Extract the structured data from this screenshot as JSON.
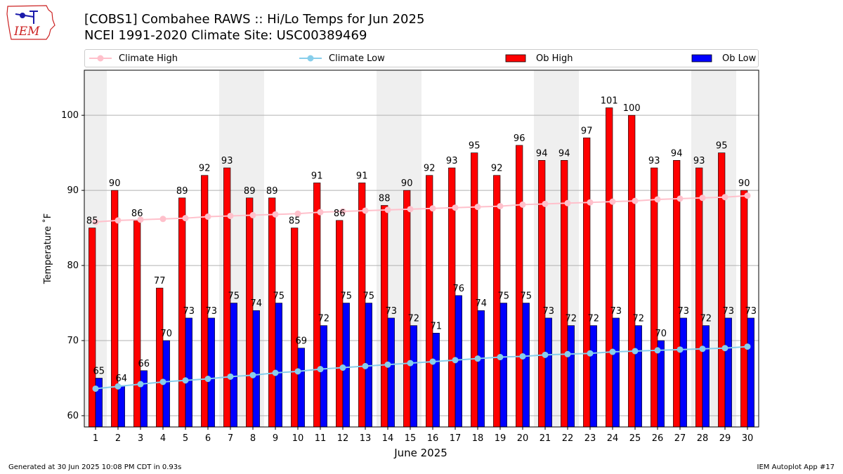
{
  "header": {
    "title_line1": "[COBS1] Combahee RAWS :: Hi/Lo Temps for Jun 2025",
    "title_line2": "NCEI 1991-2020 Climate Site: USC00389469"
  },
  "logo": {
    "text": "IEM"
  },
  "legend": {
    "items": [
      {
        "label": "Climate High",
        "color": "#ffc0cb",
        "kind": "line"
      },
      {
        "label": "Climate Low",
        "color": "#87ceeb",
        "kind": "line"
      },
      {
        "label": "Ob High",
        "color": "#ff0000",
        "kind": "bar"
      },
      {
        "label": "Ob Low",
        "color": "#0000ff",
        "kind": "bar"
      }
    ]
  },
  "footer": {
    "left": "Generated at 30 Jun 2025 10:08 PM CDT in 0.93s",
    "right": "IEM Autoplot App #17"
  },
  "chart_data": {
    "type": "bar",
    "xlabel": "June 2025",
    "ylabel": "Temperature ˚F",
    "ylim": [
      58.5,
      106
    ],
    "yticks": [
      60,
      70,
      80,
      90,
      100
    ],
    "grid": "horizontal",
    "weekend_shading_days": [
      1,
      7,
      8,
      14,
      15,
      21,
      22,
      28,
      29
    ],
    "categories": [
      "1",
      "2",
      "3",
      "4",
      "5",
      "6",
      "7",
      "8",
      "9",
      "10",
      "11",
      "12",
      "13",
      "14",
      "15",
      "16",
      "17",
      "18",
      "19",
      "20",
      "21",
      "22",
      "23",
      "24",
      "25",
      "26",
      "27",
      "28",
      "29",
      "30"
    ],
    "series": [
      {
        "name": "Ob High",
        "kind": "bar",
        "color": "#ff0000",
        "values": [
          85,
          90,
          86,
          77,
          89,
          92,
          93,
          89,
          89,
          85,
          91,
          86,
          91,
          88,
          90,
          92,
          93,
          95,
          92,
          96,
          94,
          94,
          97,
          101,
          100,
          93,
          94,
          93,
          95,
          90
        ]
      },
      {
        "name": "Ob Low",
        "kind": "bar",
        "color": "#0000ff",
        "values": [
          65,
          64,
          66,
          70,
          73,
          73,
          75,
          74,
          75,
          69,
          72,
          75,
          75,
          73,
          72,
          71,
          76,
          74,
          75,
          75,
          73,
          72,
          72,
          73,
          72,
          70,
          73,
          72,
          73,
          73
        ]
      },
      {
        "name": "Climate High",
        "kind": "line",
        "color": "#ffc0cb",
        "values": [
          85.8,
          86.0,
          86.1,
          86.2,
          86.3,
          86.5,
          86.6,
          86.7,
          86.8,
          86.9,
          87.1,
          87.2,
          87.3,
          87.4,
          87.5,
          87.6,
          87.7,
          87.8,
          87.9,
          88.1,
          88.2,
          88.3,
          88.4,
          88.5,
          88.6,
          88.8,
          88.9,
          89.0,
          89.1,
          89.3
        ]
      },
      {
        "name": "Climate Low",
        "kind": "line",
        "color": "#87ceeb",
        "values": [
          63.6,
          63.9,
          64.2,
          64.5,
          64.7,
          64.9,
          65.2,
          65.4,
          65.7,
          65.9,
          66.2,
          66.4,
          66.6,
          66.8,
          67.0,
          67.2,
          67.4,
          67.6,
          67.8,
          67.9,
          68.1,
          68.2,
          68.3,
          68.5,
          68.6,
          68.7,
          68.8,
          68.9,
          69.0,
          69.2
        ]
      }
    ]
  }
}
